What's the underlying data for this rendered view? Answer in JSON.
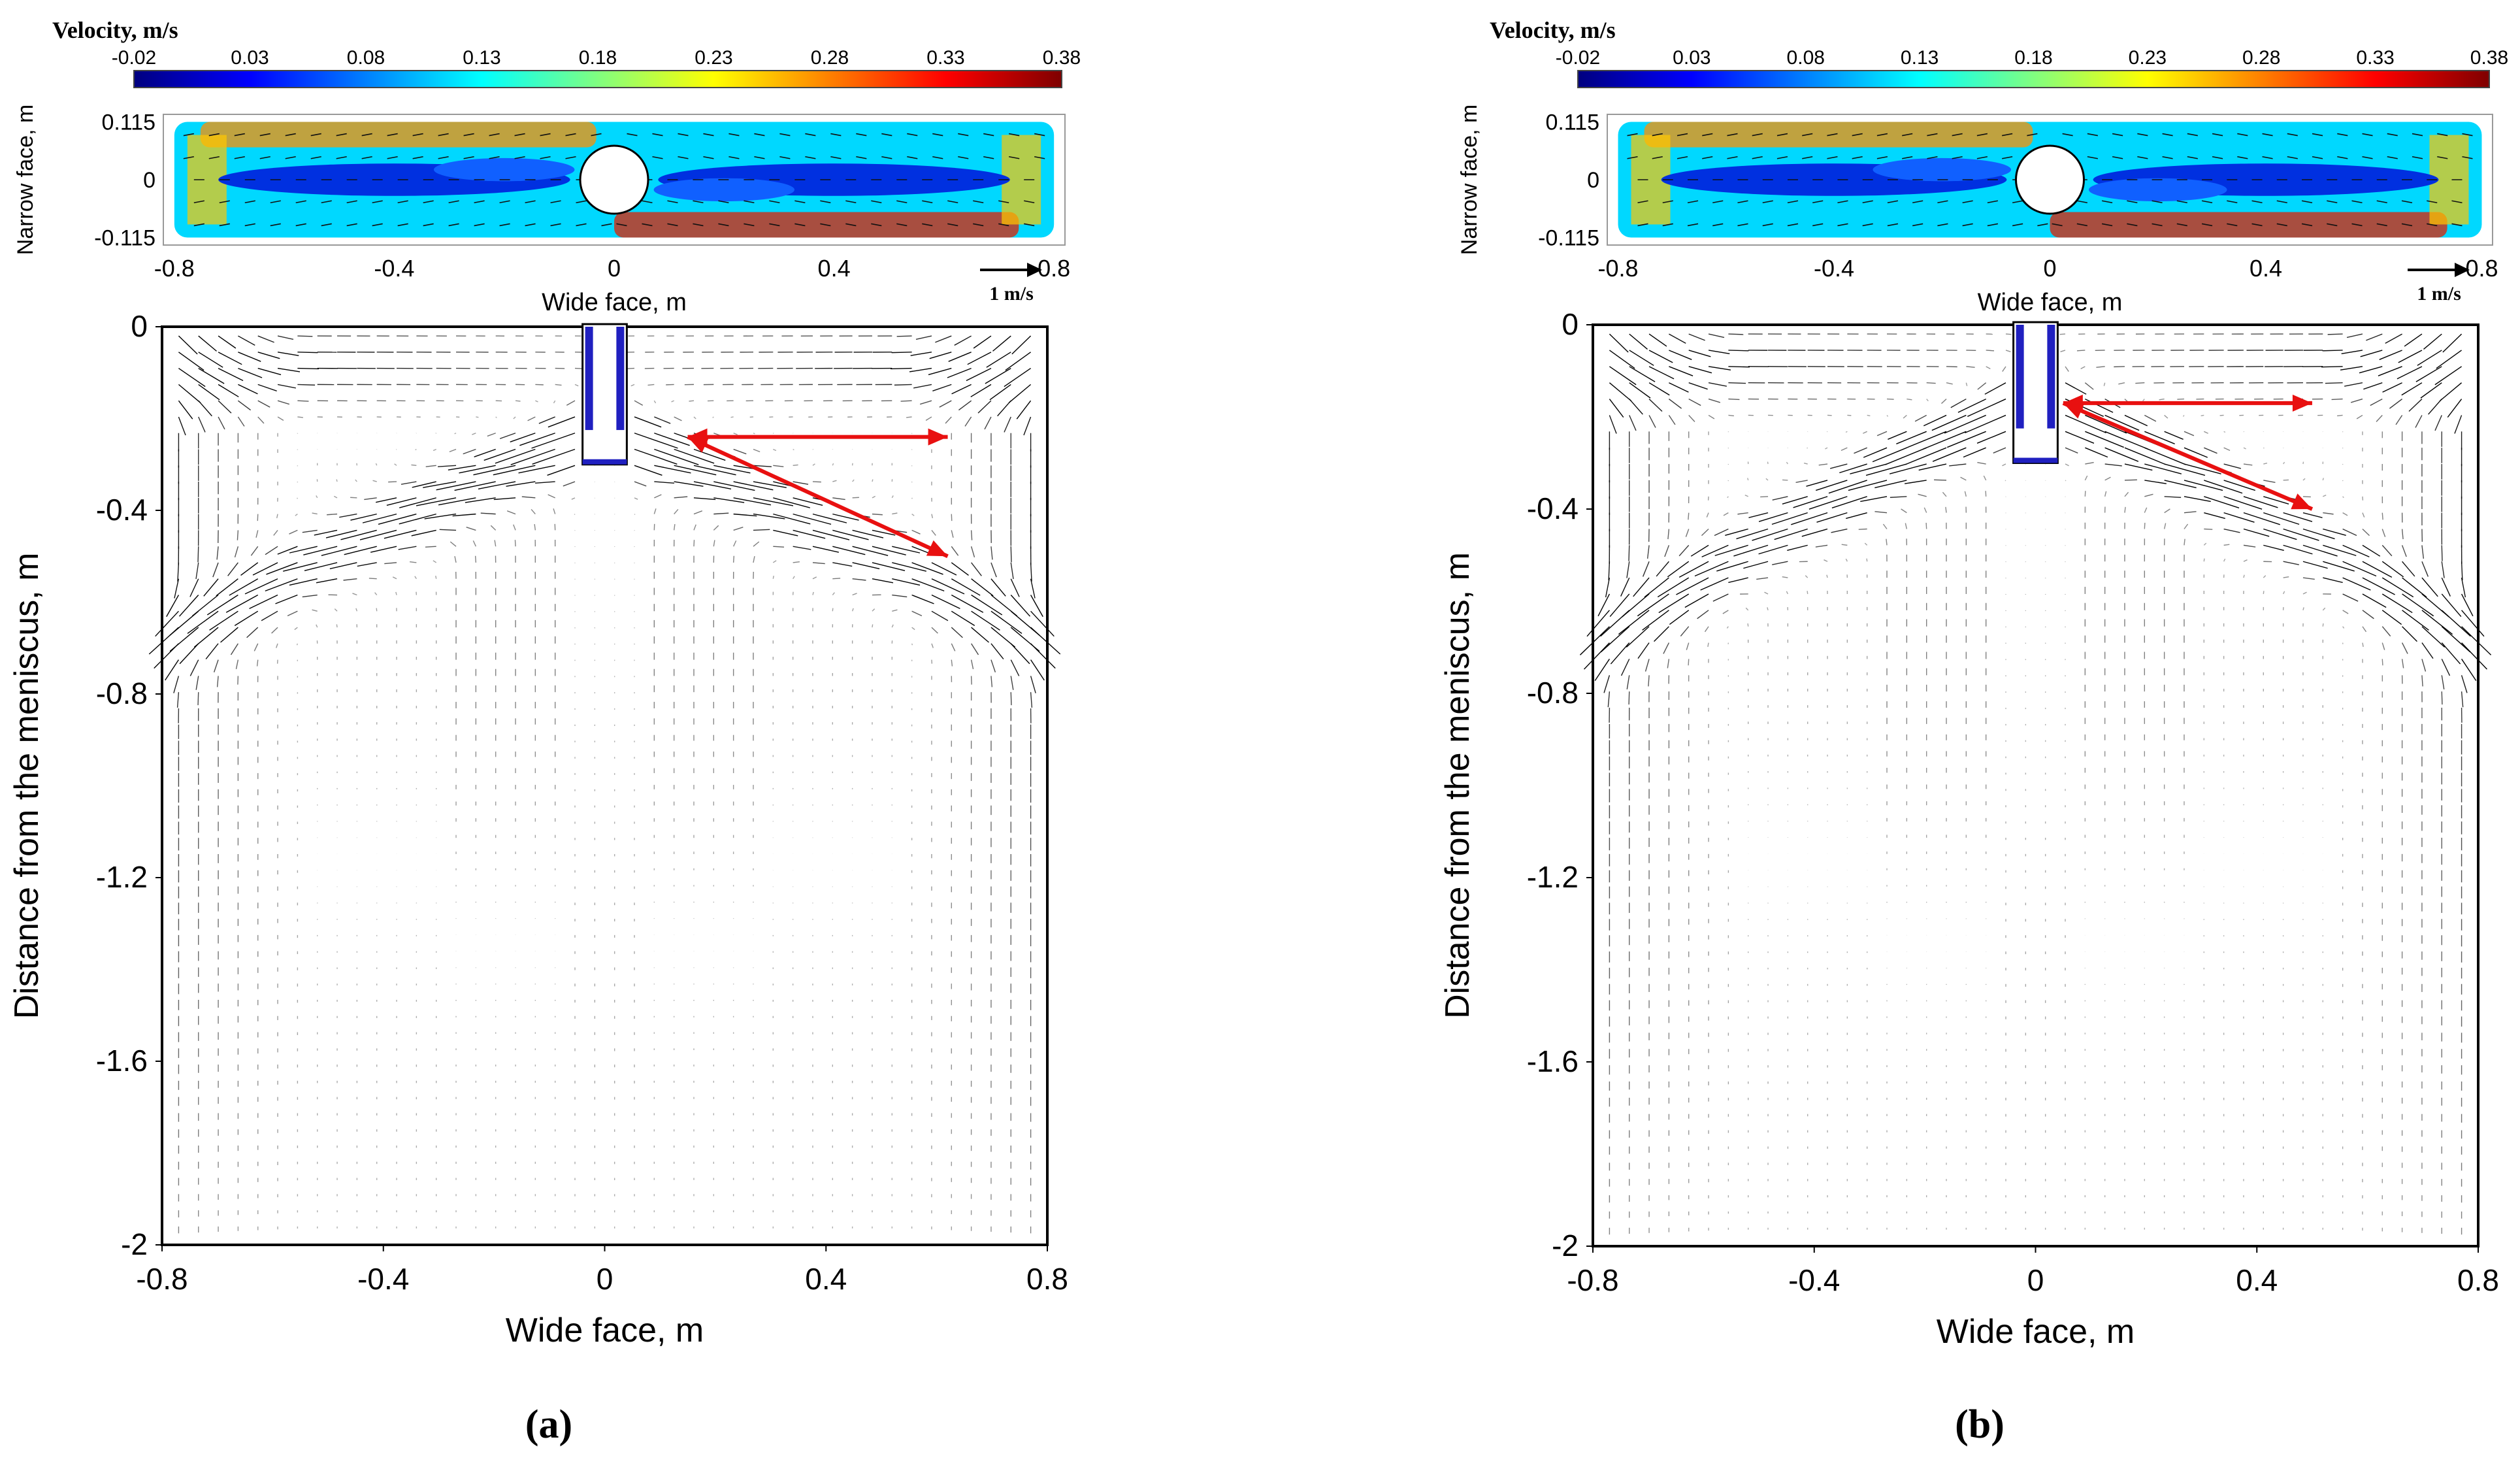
{
  "colorbar_stops": [
    "#00007f",
    "#0000ff",
    "#0080ff",
    "#00ffff",
    "#80ff80",
    "#ffff00",
    "#ff8000",
    "#ff0000",
    "#7f0000"
  ],
  "panels": [
    {
      "id": "a",
      "label_text": "(a)",
      "colorbar": {
        "title": "Velocity, m/s",
        "ticks": [
          "-0.02",
          "0.03",
          "0.08",
          "0.13",
          "0.18",
          "0.23",
          "0.28",
          "0.33",
          "0.38"
        ],
        "min": -0.02,
        "max": 0.38
      },
      "top_chart": {
        "type": "heatmap",
        "xlabel": "Wide face, m",
        "ylabel": "Narrow face, m",
        "xticks": [
          "-0.8",
          "-0.4",
          "0",
          "0.4",
          "0.8"
        ],
        "xtick_values": [
          -0.8,
          -0.4,
          0,
          0.4,
          0.8
        ],
        "yticks": [
          "0.115",
          "0",
          "-0.115"
        ],
        "ytick_values": [
          0.115,
          0,
          -0.115
        ],
        "xlim": [
          -0.82,
          0.82
        ],
        "ylim": [
          -0.13,
          0.13
        ],
        "reference_vector": "1 m/s"
      },
      "main_chart": {
        "type": "quiver",
        "xlabel": "Wide face, m",
        "ylabel": "Distance from the meniscus, m",
        "xticks": [
          "-0.8",
          "-0.4",
          "0",
          "0.4",
          "0.8"
        ],
        "xtick_values": [
          -0.8,
          -0.4,
          0,
          0.4,
          0.8
        ],
        "yticks": [
          "0",
          "-0.4",
          "-0.8",
          "-1.2",
          "-1.6",
          "-2"
        ],
        "ytick_values": [
          0,
          -0.4,
          -0.8,
          -1.2,
          -1.6,
          -2
        ],
        "xlim": [
          -0.8,
          0.8
        ],
        "ylim": [
          -2,
          0
        ],
        "nozzle": {
          "x_min": -0.04,
          "x_max": 0.04,
          "bottom": -0.3
        },
        "jet_ports": [
          {
            "x": 0.04,
            "y": -0.3
          },
          {
            "x": -0.04,
            "y": -0.3
          }
        ],
        "jet_depth": 0.55,
        "jet_start_y": -0.24,
        "red_arrows": [
          {
            "from": [
              0.15,
              -0.24
            ],
            "to": [
              0.62,
              -0.24
            ]
          },
          {
            "from": [
              0.15,
              -0.24
            ],
            "to": [
              0.62,
              -0.5
            ]
          }
        ]
      }
    },
    {
      "id": "b",
      "label_text": "(b)",
      "colorbar": {
        "title": "Velocity, m/s",
        "ticks": [
          "-0.02",
          "0.03",
          "0.08",
          "0.13",
          "0.18",
          "0.23",
          "0.28",
          "0.33",
          "0.38"
        ],
        "min": -0.02,
        "max": 0.38
      },
      "top_chart": {
        "type": "heatmap",
        "xlabel": "Wide face, m",
        "ylabel": "Narrow face, m",
        "xticks": [
          "-0.8",
          "-0.4",
          "0",
          "0.4",
          "0.8"
        ],
        "xtick_values": [
          -0.8,
          -0.4,
          0,
          0.4,
          0.8
        ],
        "yticks": [
          "0.115",
          "0",
          "-0.115"
        ],
        "ytick_values": [
          0.115,
          0,
          -0.115
        ],
        "xlim": [
          -0.82,
          0.82
        ],
        "ylim": [
          -0.13,
          0.13
        ],
        "reference_vector": "1 m/s"
      },
      "main_chart": {
        "type": "quiver",
        "xlabel": "Wide face, m",
        "ylabel": "Distance from the meniscus, m",
        "xticks": [
          "-0.8",
          "-0.4",
          "0",
          "0.4",
          "0.8"
        ],
        "xtick_values": [
          -0.8,
          -0.4,
          0,
          0.4,
          0.8
        ],
        "yticks": [
          "0",
          "-0.4",
          "-0.8",
          "-1.2",
          "-1.6",
          "-2"
        ],
        "ytick_values": [
          0,
          -0.4,
          -0.8,
          -1.2,
          -1.6,
          -2
        ],
        "xlim": [
          -0.8,
          0.8
        ],
        "ylim": [
          -2,
          0
        ],
        "nozzle": {
          "x_min": -0.04,
          "x_max": 0.04,
          "bottom": -0.3
        },
        "jet_ports": [
          {
            "x": 0.04,
            "y": -0.18
          },
          {
            "x": -0.04,
            "y": -0.18
          }
        ],
        "jet_depth": 0.62,
        "jet_start_y": -0.17,
        "red_arrows": [
          {
            "from": [
              0.05,
              -0.17
            ],
            "to": [
              0.5,
              -0.17
            ]
          },
          {
            "from": [
              0.05,
              -0.17
            ],
            "to": [
              0.5,
              -0.4
            ]
          }
        ]
      }
    }
  ]
}
